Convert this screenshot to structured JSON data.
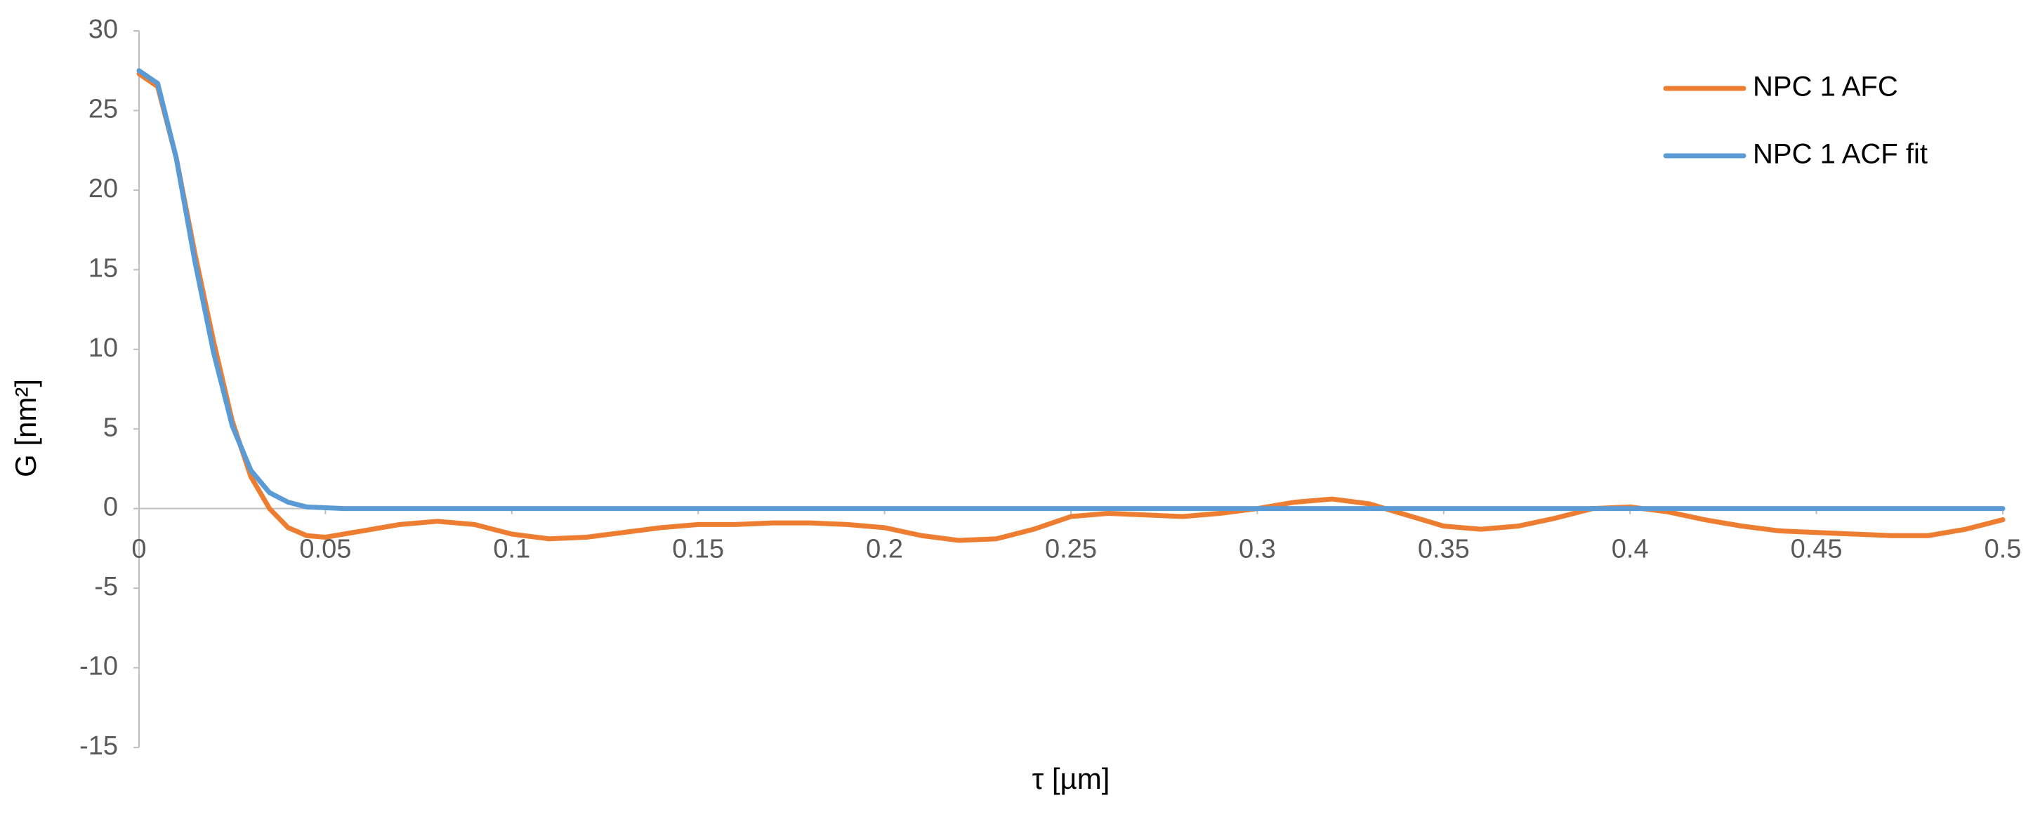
{
  "chart_data": {
    "type": "line",
    "x_label": "τ [µm]",
    "y_label": "G [nm²]",
    "x": [
      0,
      0.005,
      0.01,
      0.015,
      0.02,
      0.025,
      0.03,
      0.035,
      0.04,
      0.045,
      0.05,
      0.055,
      0.06,
      0.07,
      0.08,
      0.09,
      0.1,
      0.11,
      0.12,
      0.13,
      0.14,
      0.15,
      0.16,
      0.17,
      0.18,
      0.19,
      0.2,
      0.21,
      0.22,
      0.23,
      0.24,
      0.25,
      0.26,
      0.27,
      0.28,
      0.29,
      0.3,
      0.31,
      0.32,
      0.33,
      0.34,
      0.35,
      0.36,
      0.37,
      0.38,
      0.39,
      0.4,
      0.41,
      0.42,
      0.43,
      0.44,
      0.45,
      0.46,
      0.47,
      0.48,
      0.49,
      0.5
    ],
    "series": [
      {
        "name": "NPC 1 AFC",
        "color": "#ed7d31",
        "values": [
          27.3,
          26.5,
          22,
          16,
          10.5,
          5.5,
          2,
          0,
          -1.2,
          -1.7,
          -1.8,
          -1.6,
          -1.4,
          -1.0,
          -0.8,
          -1.0,
          -1.6,
          -1.9,
          -1.8,
          -1.5,
          -1.2,
          -1.0,
          -1.0,
          -0.9,
          -0.9,
          -1.0,
          -1.2,
          -1.7,
          -2.0,
          -1.9,
          -1.3,
          -0.5,
          -0.3,
          -0.4,
          -0.5,
          -0.3,
          0.0,
          0.4,
          0.6,
          0.3,
          -0.4,
          -1.1,
          -1.3,
          -1.1,
          -0.6,
          0.0,
          0.1,
          -0.2,
          -0.7,
          -1.1,
          -1.4,
          -1.5,
          -1.6,
          -1.7,
          -1.7,
          -1.3,
          -0.7
        ]
      },
      {
        "name": "NPC 1 ACF fit",
        "color": "#5b9bd5",
        "values": [
          27.5,
          26.7,
          22,
          15.5,
          9.8,
          5.2,
          2.4,
          1.0,
          0.4,
          0.1,
          0.05,
          0,
          0,
          0,
          0,
          0,
          0,
          0,
          0,
          0,
          0,
          0,
          0,
          0,
          0,
          0,
          0,
          0,
          0,
          0,
          0,
          0,
          0,
          0,
          0,
          0,
          0,
          0,
          0,
          0,
          0,
          0,
          0,
          0,
          0,
          0,
          0,
          0,
          0,
          0,
          0,
          0,
          0,
          0,
          0,
          0,
          0
        ]
      }
    ],
    "xlim": [
      0,
      0.5
    ],
    "xticks": [
      0,
      0.05,
      0.1,
      0.15,
      0.2,
      0.25,
      0.3,
      0.35,
      0.4,
      0.45,
      0.5
    ],
    "ylim": [
      -15,
      30
    ],
    "yticks": [
      -15,
      -10,
      -5,
      0,
      5,
      10,
      15,
      20,
      25,
      30
    ],
    "grid": false,
    "legend": "top-right"
  }
}
